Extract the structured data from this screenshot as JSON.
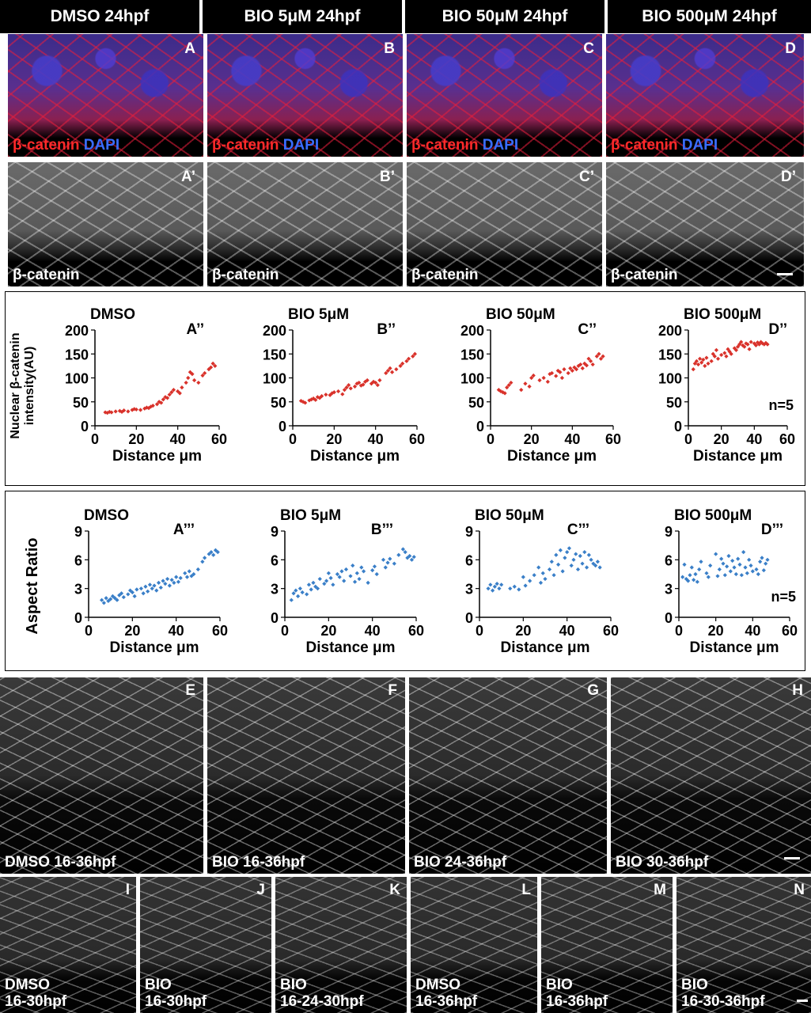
{
  "headers": [
    "DMSO 24hpf",
    "BIO 5μM 24hpf",
    "BIO 50μM 24hpf",
    "BIO 500μM 24hpf"
  ],
  "row1": {
    "letters": [
      "A",
      "B",
      "C",
      "D"
    ],
    "label_red": "β-catenin",
    "label_blue": "DAPI"
  },
  "row2": {
    "letters": [
      "A’",
      "B’",
      "C’",
      "D’"
    ],
    "label": "β-catenin"
  },
  "row_efgh": {
    "letters": [
      "E",
      "F",
      "G",
      "H"
    ],
    "labels": [
      "DMSO 16-36hpf",
      "BIO 16-36hpf",
      "BIO 24-36hpf",
      "BIO 30-36hpf"
    ]
  },
  "row_in": {
    "letters": [
      "I",
      "J",
      "K",
      "L",
      "M",
      "N"
    ],
    "labels_line1": [
      "DMSO",
      "BIO",
      "BIO",
      "DMSO",
      "BIO",
      "BIO"
    ],
    "labels_line2": [
      "16-30hpf",
      "16-30hpf",
      "16-24-30hpf",
      "16-36hpf",
      "16-36hpf",
      "16-30-36hpf"
    ]
  },
  "colors": {
    "red_points": "#d9322b",
    "blue_points": "#3a7fc8",
    "label_red": "#ff2a2a",
    "label_blue": "#3a6dff"
  },
  "chart_data": [
    {
      "type": "scatter",
      "panel": "A’’",
      "title": "DMSO",
      "ylabel": "Nuclear β-catenin intensity(AU)",
      "xlabel": "Distance μm",
      "xlim": [
        0,
        60
      ],
      "ylim": [
        0,
        200
      ],
      "xticks": [
        0,
        20,
        40,
        60
      ],
      "yticks": [
        0,
        50,
        100,
        150,
        200
      ],
      "grid": false,
      "x": [
        5,
        6,
        7,
        8,
        10,
        12,
        13,
        14,
        16,
        18,
        19,
        20,
        22,
        24,
        25,
        26,
        27,
        28,
        30,
        31,
        32,
        33,
        34,
        35,
        36,
        37,
        38,
        40,
        41,
        42,
        44,
        45,
        46,
        47,
        48,
        50,
        52,
        53,
        55,
        56,
        57,
        58
      ],
      "y": [
        28,
        27,
        29,
        28,
        30,
        31,
        29,
        32,
        30,
        33,
        35,
        34,
        33,
        36,
        38,
        37,
        40,
        42,
        45,
        50,
        48,
        55,
        60,
        58,
        65,
        70,
        75,
        72,
        68,
        80,
        90,
        100,
        112,
        108,
        95,
        90,
        105,
        110,
        118,
        122,
        130,
        125
      ]
    },
    {
      "type": "scatter",
      "panel": "B’’",
      "title": "BIO 5μM",
      "xlabel": "Distance μm",
      "xlim": [
        0,
        60
      ],
      "ylim": [
        0,
        200
      ],
      "xticks": [
        0,
        20,
        40,
        60
      ],
      "yticks": [
        0,
        50,
        100,
        150,
        200
      ],
      "grid": false,
      "x": [
        4,
        5,
        6,
        8,
        9,
        10,
        11,
        12,
        13,
        14,
        16,
        18,
        19,
        20,
        22,
        24,
        25,
        26,
        27,
        28,
        30,
        31,
        32,
        33,
        34,
        35,
        36,
        38,
        39,
        40,
        41,
        42,
        45,
        46,
        47,
        48,
        50,
        52,
        53,
        55,
        56,
        58,
        59
      ],
      "y": [
        52,
        50,
        48,
        53,
        55,
        57,
        54,
        60,
        58,
        62,
        65,
        64,
        68,
        70,
        72,
        66,
        75,
        80,
        85,
        78,
        82,
        88,
        90,
        84,
        86,
        92,
        95,
        88,
        92,
        90,
        85,
        95,
        110,
        115,
        120,
        112,
        118,
        125,
        130,
        135,
        140,
        145,
        150
      ]
    },
    {
      "type": "scatter",
      "panel": "C’’",
      "title": "BIO 50μM",
      "xlabel": "Distance μm",
      "xlim": [
        0,
        60
      ],
      "ylim": [
        0,
        200
      ],
      "xticks": [
        0,
        20,
        40,
        60
      ],
      "yticks": [
        0,
        50,
        100,
        150,
        200
      ],
      "grid": false,
      "x": [
        4,
        5,
        6,
        7,
        8,
        9,
        10,
        15,
        17,
        19,
        20,
        21,
        24,
        26,
        28,
        29,
        30,
        32,
        33,
        34,
        35,
        36,
        38,
        39,
        40,
        41,
        42,
        43,
        44,
        45,
        46,
        47,
        48,
        49,
        50,
        52,
        53,
        54,
        55
      ],
      "y": [
        75,
        72,
        70,
        68,
        80,
        85,
        90,
        75,
        88,
        82,
        100,
        105,
        95,
        100,
        92,
        108,
        110,
        104,
        115,
        112,
        100,
        118,
        110,
        120,
        115,
        122,
        118,
        125,
        128,
        120,
        130,
        126,
        140,
        135,
        128,
        145,
        150,
        140,
        145
      ]
    },
    {
      "type": "scatter",
      "panel": "D’’",
      "title": "BIO 500μM",
      "xlabel": "Distance μm",
      "xlim": [
        0,
        60
      ],
      "ylim": [
        0,
        200
      ],
      "xticks": [
        0,
        20,
        40,
        60
      ],
      "yticks": [
        0,
        50,
        100,
        150,
        200
      ],
      "grid": false,
      "annotation": "n=5",
      "x": [
        3,
        4,
        5,
        6,
        7,
        8,
        9,
        10,
        11,
        12,
        14,
        15,
        16,
        17,
        18,
        20,
        22,
        23,
        24,
        25,
        26,
        28,
        29,
        30,
        31,
        32,
        33,
        34,
        35,
        36,
        37,
        38,
        40,
        41,
        42,
        43,
        44,
        45,
        46,
        47,
        48
      ],
      "y": [
        118,
        130,
        135,
        128,
        140,
        132,
        138,
        125,
        142,
        130,
        135,
        150,
        145,
        158,
        140,
        148,
        152,
        145,
        160,
        155,
        150,
        162,
        158,
        165,
        170,
        175,
        168,
        165,
        172,
        170,
        160,
        175,
        172,
        168,
        174,
        170,
        175,
        172,
        170,
        173,
        170
      ]
    },
    {
      "type": "scatter",
      "panel": "A’’’",
      "title": "DMSO",
      "ylabel": "Aspect Ratio",
      "xlabel": "Distance μm",
      "xlim": [
        0,
        60
      ],
      "ylim": [
        0,
        9
      ],
      "xticks": [
        0,
        20,
        40,
        60
      ],
      "yticks": [
        0,
        3,
        6,
        9
      ],
      "grid": false,
      "x": [
        6,
        7,
        8,
        9,
        10,
        11,
        12,
        13,
        14,
        15,
        16,
        18,
        19,
        20,
        21,
        22,
        24,
        25,
        26,
        27,
        28,
        29,
        30,
        31,
        32,
        33,
        34,
        35,
        36,
        37,
        38,
        39,
        40,
        41,
        42,
        44,
        45,
        46,
        47,
        48,
        50,
        52,
        53,
        55,
        56,
        57,
        58,
        59
      ],
      "y": [
        1.8,
        1.5,
        2.0,
        1.7,
        1.9,
        2.2,
        2.0,
        1.8,
        2.3,
        2.5,
        2.1,
        2.4,
        2.8,
        2.6,
        2.2,
        2.9,
        3.0,
        2.5,
        3.2,
        2.7,
        3.4,
        3.0,
        3.3,
        2.8,
        3.6,
        3.1,
        3.8,
        3.5,
        4.0,
        3.3,
        3.9,
        3.6,
        4.2,
        3.7,
        4.1,
        4.6,
        4.2,
        4.8,
        4.3,
        4.5,
        5.0,
        5.8,
        6.2,
        6.6,
        6.8,
        6.5,
        7.0,
        6.8
      ]
    },
    {
      "type": "scatter",
      "panel": "B’’’",
      "title": "BIO 5μM",
      "xlabel": "Distance μm",
      "xlim": [
        0,
        60
      ],
      "ylim": [
        0,
        9
      ],
      "xticks": [
        0,
        20,
        40,
        60
      ],
      "yticks": [
        0,
        3,
        6,
        9
      ],
      "grid": false,
      "x": [
        3,
        4,
        5,
        6,
        7,
        8,
        10,
        11,
        12,
        13,
        14,
        15,
        16,
        18,
        19,
        20,
        21,
        22,
        24,
        25,
        26,
        27,
        28,
        30,
        31,
        32,
        33,
        34,
        35,
        36,
        38,
        40,
        41,
        42,
        45,
        46,
        47,
        48,
        50,
        52,
        54,
        55,
        56,
        57,
        58,
        59
      ],
      "y": [
        1.8,
        2.5,
        2.8,
        2.2,
        3.0,
        2.6,
        2.4,
        3.4,
        2.9,
        3.6,
        3.2,
        3.0,
        4.0,
        3.5,
        3.8,
        4.6,
        4.1,
        3.4,
        4.5,
        4.2,
        4.8,
        3.8,
        5.0,
        4.3,
        5.4,
        3.7,
        4.6,
        4.0,
        5.2,
        4.8,
        3.6,
        4.9,
        5.3,
        4.5,
        6.0,
        5.2,
        5.7,
        6.1,
        5.6,
        6.5,
        7.1,
        6.8,
        6.2,
        6.4,
        6.0,
        6.3
      ]
    },
    {
      "type": "scatter",
      "panel": "C’’’",
      "title": "BIO 50μM",
      "xlabel": "Distance μm",
      "xlim": [
        0,
        60
      ],
      "ylim": [
        0,
        9
      ],
      "xticks": [
        0,
        20,
        40,
        60
      ],
      "yticks": [
        0,
        3,
        6,
        9
      ],
      "grid": false,
      "x": [
        4,
        5,
        6,
        7,
        8,
        9,
        10,
        14,
        16,
        18,
        20,
        21,
        23,
        25,
        27,
        28,
        29,
        30,
        32,
        33,
        34,
        35,
        36,
        37,
        38,
        39,
        40,
        41,
        42,
        43,
        44,
        45,
        46,
        47,
        48,
        49,
        50,
        51,
        52,
        53,
        54,
        55
      ],
      "y": [
        3.0,
        3.4,
        2.8,
        3.2,
        3.5,
        3.0,
        3.4,
        3.0,
        3.2,
        2.9,
        4.2,
        3.3,
        3.8,
        4.4,
        5.2,
        3.6,
        4.6,
        4.0,
        5.0,
        5.8,
        4.4,
        6.5,
        5.5,
        7.0,
        4.8,
        6.2,
        6.8,
        7.2,
        5.4,
        6.0,
        6.6,
        5.0,
        6.4,
        5.6,
        6.8,
        5.2,
        6.5,
        6.0,
        5.6,
        5.4,
        5.8,
        5.2
      ]
    },
    {
      "type": "scatter",
      "panel": "D’’’",
      "title": "BIO 500μM",
      "xlabel": "Distance μm",
      "xlim": [
        0,
        60
      ],
      "ylim": [
        0,
        9
      ],
      "xticks": [
        0,
        20,
        40,
        60
      ],
      "yticks": [
        0,
        3,
        6,
        9
      ],
      "grid": false,
      "annotation": "n=5",
      "x": [
        2,
        3,
        4,
        5,
        6,
        7,
        8,
        9,
        10,
        11,
        12,
        15,
        16,
        17,
        20,
        21,
        22,
        23,
        24,
        25,
        26,
        27,
        28,
        29,
        30,
        31,
        32,
        33,
        34,
        35,
        36,
        37,
        38,
        39,
        40,
        42,
        43,
        44,
        45,
        46,
        47,
        48
      ],
      "y": [
        4.2,
        5.5,
        4.0,
        3.8,
        4.4,
        5.2,
        3.9,
        4.5,
        3.7,
        5.0,
        5.8,
        4.6,
        4.2,
        5.4,
        6.6,
        4.3,
        5.0,
        6.1,
        5.6,
        4.4,
        5.3,
        6.4,
        4.8,
        5.9,
        5.2,
        4.5,
        6.1,
        5.5,
        4.4,
        6.8,
        5.2,
        4.6,
        6.0,
        5.4,
        4.8,
        5.0,
        4.5,
        5.8,
        6.2,
        4.9,
        5.6,
        6.0
      ]
    }
  ]
}
